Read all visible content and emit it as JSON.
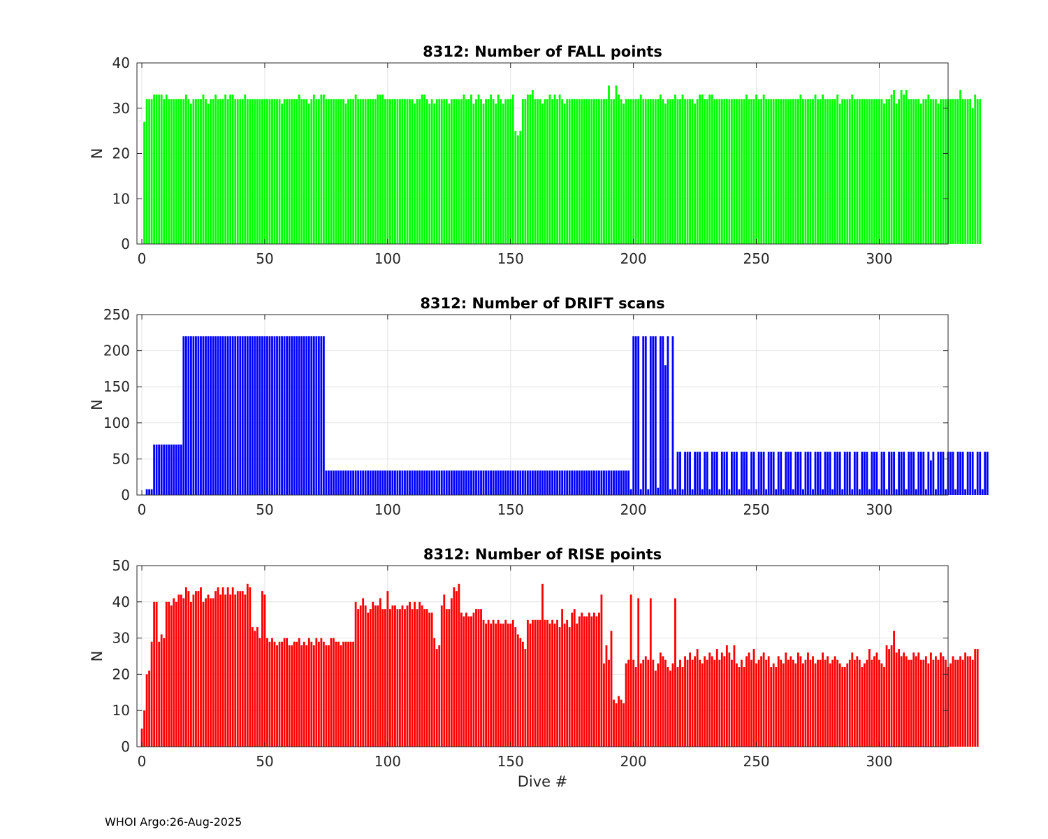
{
  "footer": "WHOI Argo:26-Aug-2025",
  "chart_data": [
    {
      "type": "bar",
      "title": "8312: Number of FALL points",
      "xlabel": "",
      "ylabel": "N",
      "xlim": [
        -2,
        328
      ],
      "ylim": [
        0,
        40
      ],
      "xticks": [
        0,
        50,
        100,
        150,
        200,
        250,
        300
      ],
      "yticks": [
        0,
        10,
        20,
        30,
        40
      ],
      "grid": true,
      "color": "#00ff00",
      "x": {
        "start": 1,
        "end": 327
      },
      "values": [
        27,
        32,
        32,
        32,
        33,
        33,
        33,
        33,
        32,
        33,
        32,
        32,
        32,
        32,
        32,
        32,
        32,
        33,
        32,
        31,
        32,
        32,
        32,
        32,
        33,
        32,
        31,
        32,
        32,
        33,
        32,
        32,
        32,
        33,
        32,
        33,
        33,
        32,
        32,
        32,
        32,
        33,
        32,
        32,
        32,
        32,
        32,
        32,
        32,
        32,
        32,
        32,
        32,
        32,
        32,
        32,
        31,
        32,
        32,
        32,
        32,
        32,
        32,
        33,
        32,
        32,
        32,
        31,
        32,
        33,
        32,
        32,
        33,
        33,
        32,
        32,
        32,
        32,
        32,
        32,
        32,
        32,
        31,
        32,
        32,
        32,
        33,
        32,
        32,
        32,
        32,
        32,
        32,
        32,
        32,
        33,
        33,
        33,
        32,
        32,
        32,
        32,
        32,
        32,
        32,
        32,
        32,
        32,
        32,
        32,
        31,
        32,
        32,
        33,
        33,
        32,
        31,
        32,
        31,
        32,
        32,
        32,
        32,
        32,
        31,
        32,
        32,
        32,
        32,
        32,
        33,
        32,
        32,
        33,
        31,
        32,
        33,
        32,
        31,
        32,
        32,
        33,
        32,
        31,
        33,
        32,
        31,
        32,
        32,
        32,
        33,
        25,
        24,
        25,
        32,
        32,
        33,
        33,
        34,
        32,
        32,
        32,
        31,
        32,
        32,
        33,
        32,
        33,
        32,
        33,
        32,
        31,
        32,
        32,
        32,
        32,
        32,
        32,
        32,
        32,
        32,
        32,
        32,
        32,
        32,
        32,
        32,
        32,
        32,
        35,
        32,
        32,
        35,
        33,
        32,
        31,
        32,
        32,
        32,
        32,
        32,
        32,
        33,
        32,
        32,
        32,
        32,
        32,
        32,
        32,
        33,
        32,
        31,
        32,
        32,
        32,
        33,
        32,
        32,
        33,
        32,
        32,
        32,
        32,
        31,
        32,
        33,
        33,
        32,
        32,
        33,
        33,
        32,
        32,
        32,
        32,
        32,
        32,
        32,
        32,
        32,
        32,
        32,
        32,
        32,
        33,
        32,
        32,
        32,
        33,
        32,
        32,
        33,
        32,
        32,
        32,
        32,
        32,
        32,
        32,
        32,
        32,
        32,
        32,
        32,
        32,
        32,
        33,
        32,
        32,
        32,
        32,
        32,
        33,
        32,
        32,
        33,
        32,
        32,
        32,
        32,
        32,
        33,
        31,
        32,
        32,
        32,
        32,
        33,
        32,
        32,
        32,
        32,
        32,
        32,
        32,
        32,
        32,
        32,
        32,
        32,
        31,
        32,
        32,
        33,
        34,
        31,
        32,
        34,
        33,
        34,
        32,
        32,
        32,
        32,
        32,
        31,
        32,
        32,
        33,
        32,
        32,
        32,
        31,
        32,
        32,
        32,
        32,
        32,
        32,
        32,
        32,
        34,
        32,
        32,
        32,
        32,
        30,
        33,
        32,
        32
      ]
    },
    {
      "type": "bar",
      "title": "8312: Number of DRIFT scans",
      "xlabel": "",
      "ylabel": "N",
      "xlim": [
        -2,
        328
      ],
      "ylim": [
        0,
        250
      ],
      "xticks": [
        0,
        50,
        100,
        150,
        200,
        250,
        300
      ],
      "yticks": [
        0,
        50,
        100,
        150,
        200,
        250
      ],
      "grid": true,
      "color": "#0000ff",
      "x": {
        "start": 1,
        "end": 327
      },
      "values": [
        0,
        8,
        8,
        8,
        70,
        70,
        70,
        70,
        70,
        70,
        70,
        70,
        70,
        70,
        70,
        70,
        220,
        220,
        220,
        220,
        220,
        220,
        220,
        220,
        220,
        220,
        220,
        220,
        220,
        220,
        220,
        220,
        220,
        220,
        220,
        220,
        220,
        220,
        220,
        220,
        220,
        220,
        220,
        220,
        220,
        220,
        220,
        220,
        220,
        220,
        220,
        220,
        220,
        220,
        220,
        220,
        220,
        220,
        220,
        220,
        220,
        220,
        220,
        220,
        220,
        220,
        220,
        220,
        220,
        220,
        220,
        220,
        220,
        220,
        34,
        34,
        34,
        34,
        34,
        34,
        34,
        34,
        34,
        34,
        34,
        34,
        34,
        34,
        34,
        34,
        34,
        34,
        34,
        34,
        34,
        34,
        34,
        34,
        34,
        34,
        34,
        34,
        34,
        34,
        34,
        34,
        34,
        34,
        34,
        34,
        34,
        34,
        34,
        34,
        34,
        34,
        34,
        34,
        34,
        34,
        34,
        34,
        34,
        34,
        34,
        34,
        34,
        34,
        34,
        34,
        34,
        34,
        34,
        34,
        34,
        34,
        34,
        34,
        34,
        34,
        34,
        34,
        34,
        34,
        34,
        34,
        34,
        34,
        34,
        34,
        34,
        34,
        34,
        34,
        34,
        34,
        34,
        34,
        34,
        34,
        34,
        34,
        34,
        34,
        34,
        34,
        34,
        34,
        34,
        34,
        34,
        34,
        34,
        34,
        34,
        34,
        34,
        34,
        34,
        34,
        34,
        34,
        34,
        34,
        34,
        34,
        34,
        34,
        34,
        34,
        34,
        34,
        34,
        34,
        34,
        34,
        34,
        34,
        8,
        220,
        220,
        220,
        8,
        220,
        220,
        8,
        220,
        220,
        220,
        10,
        220,
        220,
        180,
        220,
        8,
        220,
        8,
        60,
        60,
        8,
        60,
        60,
        60,
        8,
        60,
        60,
        60,
        8,
        60,
        60,
        8,
        60,
        60,
        60,
        8,
        60,
        60,
        60,
        8,
        60,
        60,
        60,
        8,
        60,
        60,
        60,
        8,
        60,
        60,
        8,
        60,
        60,
        60,
        8,
        60,
        60,
        60,
        8,
        60,
        60,
        8,
        60,
        60,
        60,
        8,
        60,
        60,
        60,
        8,
        60,
        60,
        60,
        8,
        60,
        60,
        60,
        8,
        60,
        60,
        60,
        8,
        60,
        60,
        60,
        8,
        60,
        60,
        60,
        8,
        60,
        60,
        8,
        60,
        60,
        60,
        8,
        60,
        60,
        60,
        8,
        60,
        60,
        8,
        60,
        60,
        60,
        8,
        60,
        60,
        60,
        8,
        60,
        60,
        60,
        8,
        60,
        60,
        60,
        8,
        60,
        48,
        60,
        8,
        60,
        60,
        60,
        8,
        60,
        60,
        60,
        8,
        60,
        60,
        60,
        8,
        60,
        60,
        60,
        8,
        60,
        60,
        8,
        60,
        60
      ]
    },
    {
      "type": "bar",
      "title": "8312: Number of RISE points",
      "xlabel": "Dive #",
      "ylabel": "N",
      "xlim": [
        -2,
        328
      ],
      "ylim": [
        0,
        50
      ],
      "xticks": [
        0,
        50,
        100,
        150,
        200,
        250,
        300
      ],
      "yticks": [
        0,
        10,
        20,
        30,
        40,
        50
      ],
      "grid": true,
      "color": "#ff0000",
      "x": {
        "start": 0,
        "end": 327
      },
      "values": [
        5,
        10,
        20,
        21,
        29,
        40,
        40,
        29,
        31,
        30,
        40,
        40,
        39,
        41,
        40,
        42,
        42,
        41,
        44,
        43,
        40,
        42,
        43,
        43,
        44,
        40,
        41,
        42,
        41,
        41,
        43,
        44,
        42,
        44,
        42,
        44,
        42,
        44,
        42,
        43,
        43,
        43,
        42,
        45,
        44,
        33,
        32,
        33,
        30,
        43,
        42,
        30,
        29,
        30,
        29,
        28,
        29,
        29,
        30,
        30,
        28,
        28,
        29,
        29,
        30,
        28,
        29,
        28,
        30,
        29,
        28,
        30,
        29,
        30,
        29,
        28,
        28,
        30,
        30,
        29,
        29,
        28,
        29,
        29,
        29,
        29,
        29,
        40,
        38,
        39,
        41,
        39,
        37,
        38,
        40,
        39,
        39,
        41,
        38,
        38,
        43,
        38,
        39,
        39,
        38,
        38,
        39,
        38,
        39,
        40,
        38,
        40,
        38,
        40,
        39,
        38,
        38,
        37,
        37,
        30,
        27,
        28,
        39,
        42,
        38,
        38,
        41,
        44,
        43,
        45,
        37,
        36,
        37,
        36,
        36,
        37,
        38,
        38,
        38,
        35,
        34,
        35,
        34,
        35,
        34,
        35,
        34,
        34,
        35,
        34,
        34,
        35,
        33,
        31,
        30,
        29,
        27,
        35,
        34,
        35,
        35,
        35,
        35,
        45,
        35,
        35,
        34,
        35,
        34,
        35,
        33,
        38,
        34,
        35,
        33,
        37,
        38,
        34,
        36,
        37,
        36,
        36,
        37,
        36,
        37,
        36,
        37,
        42,
        23,
        28,
        24,
        32,
        13,
        12,
        14,
        13,
        12,
        23,
        24,
        42,
        24,
        22,
        41,
        23,
        24,
        25,
        24,
        41,
        24,
        21,
        23,
        26,
        25,
        24,
        22,
        21,
        23,
        41,
        22,
        24,
        22,
        25,
        24,
        26,
        24,
        25,
        27,
        24,
        23,
        25,
        24,
        26,
        25,
        24,
        27,
        24,
        26,
        25,
        28,
        26,
        24,
        28,
        23,
        22,
        24,
        22,
        25,
        26,
        24,
        27,
        23,
        24,
        25,
        26,
        24,
        25,
        22,
        23,
        22,
        25,
        24,
        23,
        26,
        24,
        25,
        24,
        23,
        26,
        25,
        23,
        24,
        26,
        24,
        25,
        23,
        24,
        24,
        26,
        24,
        25,
        23,
        24,
        25,
        24,
        23,
        22,
        22,
        23,
        24,
        26,
        24,
        25,
        24,
        22,
        23,
        24,
        27,
        24,
        25,
        26,
        24,
        23,
        22,
        28,
        27,
        28,
        32,
        26,
        27,
        25,
        26,
        25,
        24,
        24,
        26,
        25,
        26,
        24,
        24,
        25,
        23,
        26,
        24,
        25,
        24,
        26,
        25,
        24,
        22,
        23,
        25,
        24,
        24,
        25,
        24,
        26,
        25,
        25,
        24,
        27,
        27
      ]
    }
  ]
}
